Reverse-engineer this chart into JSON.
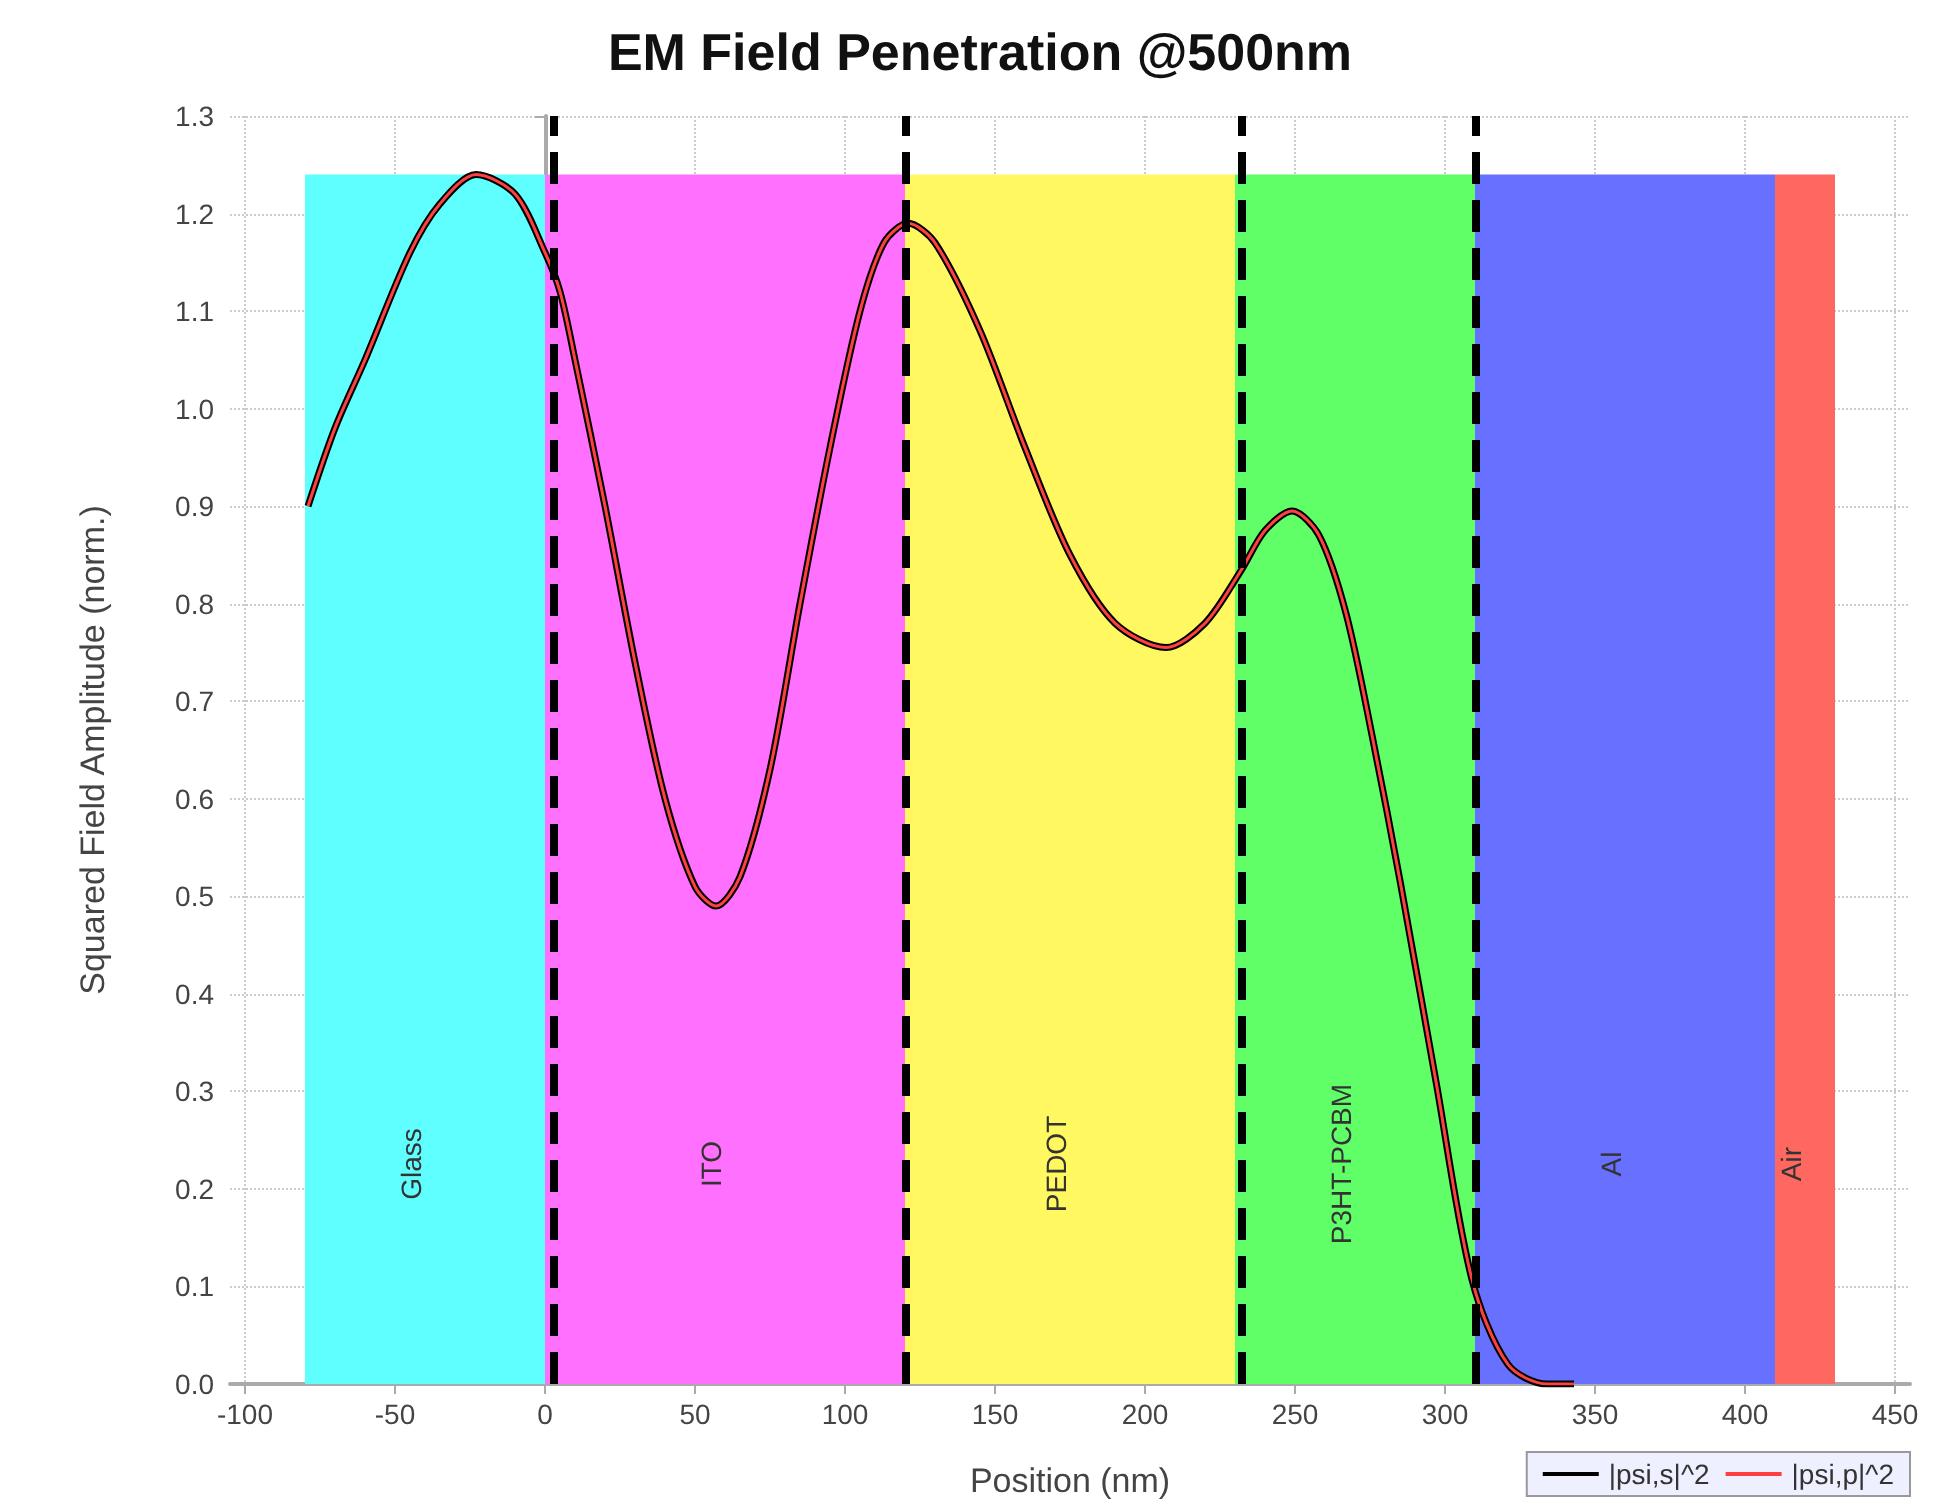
{
  "chart_data": {
    "type": "line",
    "title": "EM Field Penetration @500nm",
    "xlabel": "Position (nm)",
    "ylabel": "Squared Field Amplitude (norm.)",
    "xlim": [
      -105,
      455
    ],
    "xticks": [
      -100,
      -50,
      0,
      50,
      100,
      150,
      200,
      250,
      300,
      350,
      400,
      450
    ],
    "ylim": [
      0,
      1.3
    ],
    "yticks": [
      {
        "value": 0,
        "label": "0.0"
      },
      {
        "value": 0.1,
        "label": "0.1"
      },
      {
        "value": 0.2,
        "label": "0.2"
      },
      {
        "value": 0.3,
        "label": "0.3"
      },
      {
        "value": 0.4,
        "label": "0.4"
      },
      {
        "value": 0.5,
        "label": "0.5"
      },
      {
        "value": 0.6,
        "label": "0.6"
      },
      {
        "value": 0.7,
        "label": "0.7"
      },
      {
        "value": 0.8,
        "label": "0.8"
      },
      {
        "value": 0.9,
        "label": "0.9"
      },
      {
        "value": 1,
        "label": "1.0"
      },
      {
        "value": 1.1,
        "label": "1.1"
      },
      {
        "value": 1.2,
        "label": "1.2"
      },
      {
        "value": 1.3,
        "label": "1.3"
      }
    ],
    "grid": true,
    "legend": "bottom right",
    "marker": "none",
    "line_style": "solid",
    "x": [
      -79,
      -70,
      -60,
      -45,
      -35,
      -23,
      -10,
      0,
      5,
      10,
      20,
      30,
      40,
      50,
      57,
      65,
      75,
      85,
      95,
      105,
      113,
      121,
      130,
      145,
      160,
      175,
      190,
      207,
      220,
      232,
      240,
      249,
      258,
      267,
      276,
      285,
      297,
      309,
      321,
      334,
      343
    ],
    "series": [
      {
        "name": "|psi,s|^2",
        "color": "#000000",
        "values": [
          0.9,
          0.98,
          1.05,
          1.16,
          1.21,
          1.24,
          1.22,
          1.16,
          1.12,
          1.05,
          0.9,
          0.74,
          0.6,
          0.51,
          0.49,
          0.52,
          0.63,
          0.8,
          0.96,
          1.1,
          1.17,
          1.19,
          1.17,
          1.08,
          0.96,
          0.85,
          0.78,
          0.755,
          0.78,
          0.834,
          0.875,
          0.895,
          0.87,
          0.79,
          0.66,
          0.516,
          0.31,
          0.107,
          0.02,
          0.0,
          0.0
        ]
      },
      {
        "name": "|psi,p|^2",
        "color": "#ff4040",
        "values": [
          0.9,
          0.98,
          1.05,
          1.16,
          1.21,
          1.24,
          1.22,
          1.16,
          1.12,
          1.05,
          0.9,
          0.74,
          0.6,
          0.51,
          0.49,
          0.52,
          0.63,
          0.8,
          0.96,
          1.1,
          1.17,
          1.19,
          1.17,
          1.08,
          0.96,
          0.85,
          0.78,
          0.755,
          0.78,
          0.834,
          0.875,
          0.895,
          0.87,
          0.79,
          0.66,
          0.516,
          0.31,
          0.107,
          0.02,
          0.0,
          0.0
        ]
      }
    ],
    "bands": [
      {
        "axis": "x",
        "from": -80,
        "to": 0,
        "label": "Glass",
        "color": "#60ffff"
      },
      {
        "axis": "x",
        "from": 0,
        "to": 120,
        "label": "ITO",
        "color": "#ff70ff"
      },
      {
        "axis": "x",
        "from": 120,
        "to": 230,
        "label": "PEDOT",
        "color": "#fff860"
      },
      {
        "axis": "x",
        "from": 230,
        "to": 310,
        "label": "P3HT-PCBM",
        "color": "#60ff68"
      },
      {
        "axis": "x",
        "from": 310,
        "to": 410,
        "label": "Al",
        "color": "#6870ff"
      },
      {
        "axis": "x",
        "from": 410,
        "to": 430,
        "label": "Air",
        "color": "#ff6860"
      }
    ],
    "ref_lines": [
      {
        "axis": "x",
        "value": 3,
        "label": null,
        "color": "#000000",
        "line_style": "dashed"
      },
      {
        "axis": "x",
        "value": 120,
        "label": null,
        "color": "#000000",
        "line_style": "dashed"
      },
      {
        "axis": "x",
        "value": 232,
        "label": null,
        "color": "#000000",
        "line_style": "dashed"
      },
      {
        "axis": "x",
        "value": 310,
        "label": null,
        "color": "#000000",
        "line_style": "dashed"
      }
    ]
  }
}
